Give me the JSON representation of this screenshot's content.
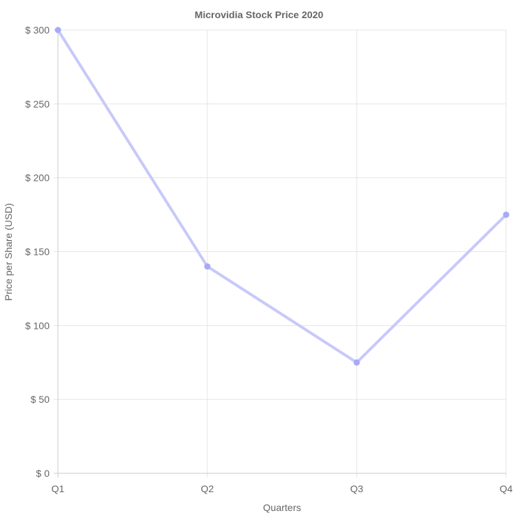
{
  "chart_data": {
    "type": "line",
    "title": "Microvidia Stock Price 2020",
    "xlabel": "Quarters",
    "ylabel": "Price per Share (USD)",
    "categories": [
      "Q1",
      "Q2",
      "Q3",
      "Q4"
    ],
    "series": [
      {
        "values": [
          300,
          140,
          75,
          175
        ]
      }
    ],
    "ylim": [
      0,
      300
    ],
    "y_ticks": [
      0,
      50,
      100,
      150,
      200,
      250,
      300
    ],
    "y_tick_prefix": "$ ",
    "grid": true,
    "legend": "none",
    "colors": {
      "line": "#c8c9f9",
      "point": "#a9aaf6",
      "grid": "#e5e5e5",
      "axis": "#c8c8c8",
      "text": "#666666"
    }
  }
}
